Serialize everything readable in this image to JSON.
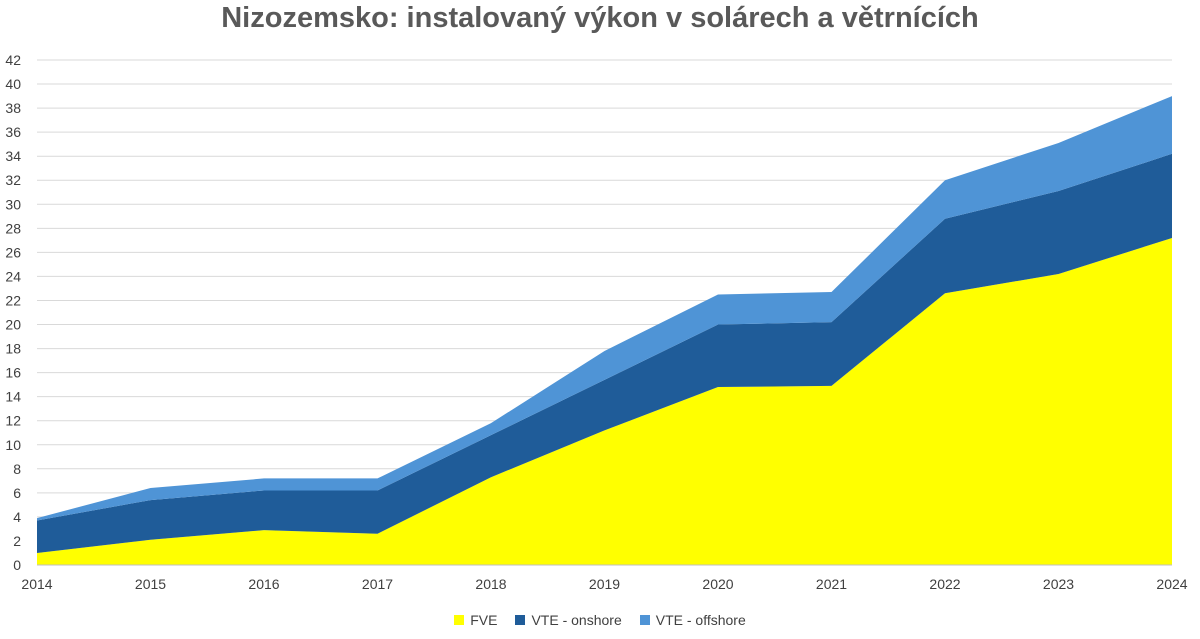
{
  "chart_data": {
    "type": "area",
    "stacked": true,
    "title": "Nizozemsko: instalovaný výkon v solárech a větrnících",
    "x": [
      2014,
      2015,
      2016,
      2017,
      2018,
      2019,
      2020,
      2021,
      2022,
      2023,
      2024
    ],
    "ylim": [
      0,
      42
    ],
    "yticks": [
      0,
      2,
      4,
      6,
      8,
      10,
      12,
      14,
      16,
      18,
      20,
      22,
      24,
      26,
      28,
      30,
      32,
      34,
      36,
      38,
      40,
      42
    ],
    "xlabel": "",
    "ylabel": "",
    "grid": true,
    "legend_position": "bottom",
    "series": [
      {
        "name": "FVE",
        "color": "#FFFF00",
        "values": [
          1.0,
          2.1,
          2.9,
          2.6,
          7.3,
          11.2,
          14.8,
          14.9,
          22.6,
          24.2,
          27.2
        ]
      },
      {
        "name": "VTE - onshore",
        "color": "#1F5C99",
        "values": [
          2.7,
          3.3,
          3.3,
          3.6,
          3.5,
          4.2,
          5.2,
          5.3,
          6.2,
          6.9,
          7.0
        ]
      },
      {
        "name": "VTE - offshore",
        "color": "#4F94D6",
        "values": [
          0.2,
          1.0,
          1.0,
          1.0,
          1.0,
          2.4,
          2.5,
          2.5,
          3.2,
          4.0,
          4.8
        ]
      }
    ]
  }
}
